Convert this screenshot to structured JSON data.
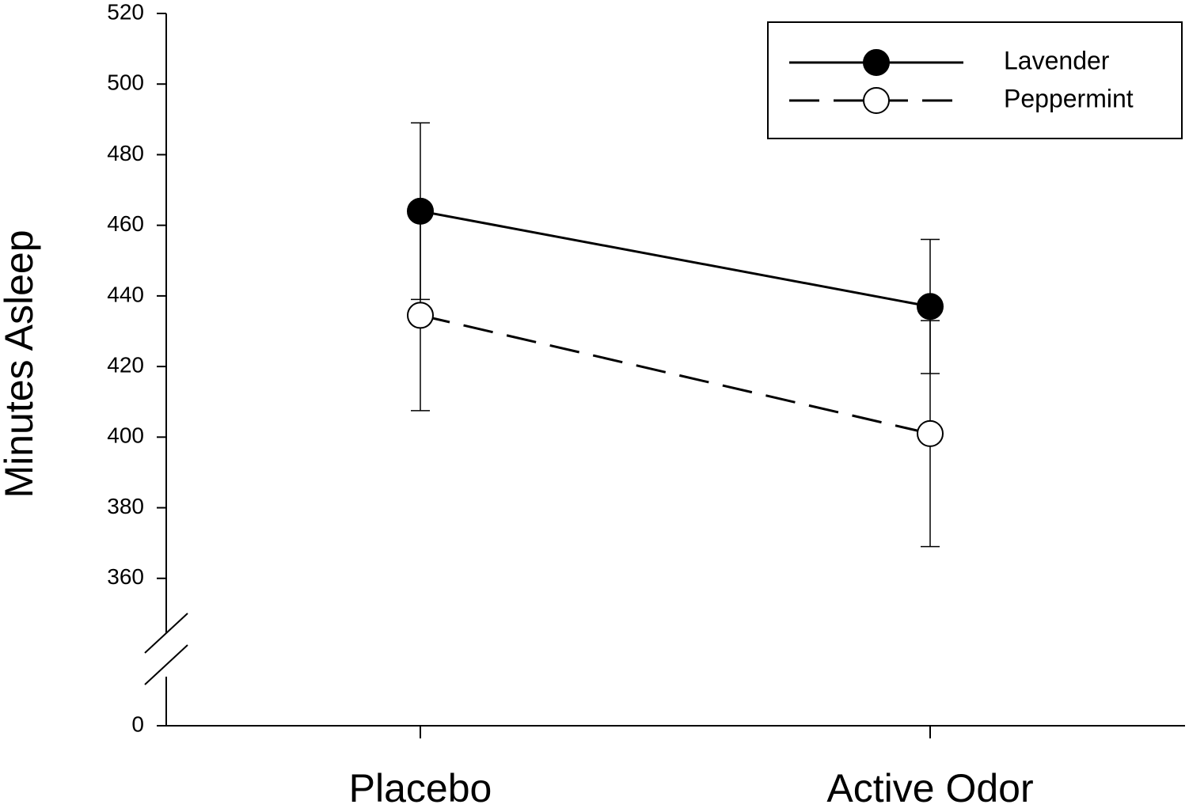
{
  "chart_data": {
    "type": "line",
    "y_label": "Minutes Asleep",
    "categories": [
      "Placebo",
      "Active Odor"
    ],
    "series": [
      {
        "name": "Lavender",
        "color": "#000000",
        "marker_fill": "#000000",
        "dash": false,
        "values": [
          464,
          437
        ],
        "errors": [
          25,
          19
        ]
      },
      {
        "name": "Peppermint",
        "color": "#000000",
        "marker_fill": "#ffffff",
        "dash": true,
        "values": [
          434.5,
          401
        ],
        "errors": [
          27,
          32
        ]
      }
    ],
    "ylim": [
      0,
      520
    ],
    "y_break": [
      0,
      340
    ],
    "yticks": [
      0,
      360,
      380,
      400,
      420,
      440,
      460,
      480,
      500,
      520
    ],
    "legend": "upper right",
    "grid": false
  }
}
